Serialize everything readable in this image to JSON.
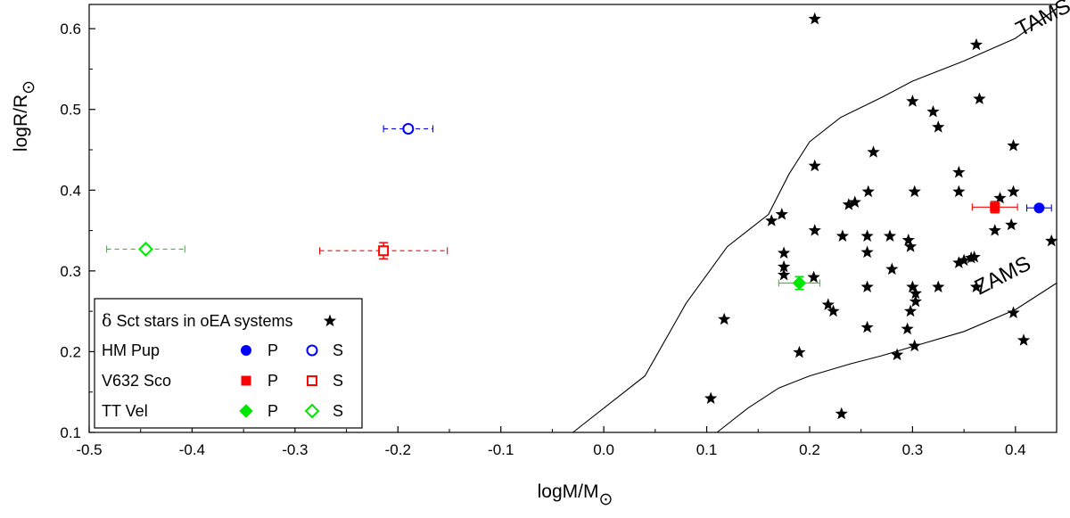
{
  "chart_data": {
    "type": "scatter",
    "xlabel": "logM/M",
    "ylabel": "logR/R",
    "xlim": [
      -0.5,
      0.44
    ],
    "ylim": [
      0.1,
      0.63
    ],
    "xticks": [
      "-0.5",
      "-0.4",
      "-0.3",
      "-0.2",
      "-0.1",
      "0.0",
      "0.1",
      "0.2",
      "0.3",
      "0.4"
    ],
    "yticks": [
      "0.1",
      "0.2",
      "0.3",
      "0.4",
      "0.5",
      "0.6"
    ],
    "solar_symbol": "⊙",
    "colors": {
      "hm_pup": "#0000ff",
      "v632_sco": "#ff0000",
      "tt_vel": "#00e600",
      "stars": "#000000",
      "lines": "#000000"
    },
    "curves": [
      {
        "name": "TAMS",
        "label": "TAMS",
        "label_x": 0.405,
        "label_y": 0.59,
        "points": [
          [
            -0.03,
            0.1
          ],
          [
            0.04,
            0.17
          ],
          [
            0.08,
            0.26
          ],
          [
            0.12,
            0.33
          ],
          [
            0.16,
            0.37
          ],
          [
            0.18,
            0.42
          ],
          [
            0.2,
            0.46
          ],
          [
            0.23,
            0.49
          ],
          [
            0.27,
            0.515
          ],
          [
            0.3,
            0.535
          ],
          [
            0.35,
            0.56
          ],
          [
            0.4,
            0.588
          ],
          [
            0.44,
            0.625
          ]
        ]
      },
      {
        "name": "ZAMS",
        "label": "ZAMS",
        "label_x": 0.365,
        "label_y": 0.27,
        "points": [
          [
            0.11,
            0.1
          ],
          [
            0.14,
            0.13
          ],
          [
            0.17,
            0.155
          ],
          [
            0.2,
            0.17
          ],
          [
            0.24,
            0.185
          ],
          [
            0.27,
            0.195
          ],
          [
            0.31,
            0.21
          ],
          [
            0.35,
            0.225
          ],
          [
            0.4,
            0.252
          ],
          [
            0.44,
            0.285
          ]
        ]
      }
    ],
    "series": [
      {
        "name": "δ Sct stars in oEA systems",
        "marker": "star",
        "points": [
          [
            0.205,
            0.612
          ],
          [
            0.362,
            0.58
          ],
          [
            0.3,
            0.51
          ],
          [
            0.365,
            0.513
          ],
          [
            0.32,
            0.497
          ],
          [
            0.325,
            0.478
          ],
          [
            0.205,
            0.43
          ],
          [
            0.262,
            0.447
          ],
          [
            0.398,
            0.455
          ],
          [
            0.345,
            0.422
          ],
          [
            0.257,
            0.398
          ],
          [
            0.302,
            0.398
          ],
          [
            0.345,
            0.398
          ],
          [
            0.398,
            0.398
          ],
          [
            0.238,
            0.382
          ],
          [
            0.244,
            0.385
          ],
          [
            0.385,
            0.39
          ],
          [
            0.173,
            0.37
          ],
          [
            0.163,
            0.362
          ],
          [
            0.205,
            0.35
          ],
          [
            0.232,
            0.343
          ],
          [
            0.256,
            0.343
          ],
          [
            0.278,
            0.343
          ],
          [
            0.296,
            0.338
          ],
          [
            0.38,
            0.35
          ],
          [
            0.396,
            0.357
          ],
          [
            0.435,
            0.337
          ],
          [
            0.256,
            0.323
          ],
          [
            0.298,
            0.33
          ],
          [
            0.175,
            0.322
          ],
          [
            0.175,
            0.305
          ],
          [
            0.28,
            0.302
          ],
          [
            0.345,
            0.31
          ],
          [
            0.35,
            0.313
          ],
          [
            0.357,
            0.316
          ],
          [
            0.36,
            0.317
          ],
          [
            0.175,
            0.295
          ],
          [
            0.204,
            0.292
          ],
          [
            0.256,
            0.28
          ],
          [
            0.3,
            0.28
          ],
          [
            0.303,
            0.272
          ],
          [
            0.325,
            0.28
          ],
          [
            0.362,
            0.28
          ],
          [
            0.303,
            0.262
          ],
          [
            0.298,
            0.25
          ],
          [
            0.218,
            0.258
          ],
          [
            0.223,
            0.25
          ],
          [
            0.117,
            0.24
          ],
          [
            0.256,
            0.23
          ],
          [
            0.295,
            0.228
          ],
          [
            0.398,
            0.248
          ],
          [
            0.408,
            0.214
          ],
          [
            0.302,
            0.207
          ],
          [
            0.19,
            0.199
          ],
          [
            0.285,
            0.196
          ],
          [
            0.104,
            0.142
          ],
          [
            0.231,
            0.123
          ]
        ]
      },
      {
        "name": "HM Pup",
        "group": "HM Pup",
        "component": "P",
        "marker": "circle",
        "filled": true,
        "points": [
          [
            0.423,
            0.378
          ]
        ],
        "xerr": [
          0.012
        ],
        "yerr": [
          0.0
        ]
      },
      {
        "name": "HM Pup",
        "group": "HM Pup",
        "component": "S",
        "marker": "circle",
        "filled": false,
        "points": [
          [
            -0.19,
            0.476
          ]
        ],
        "xerr": [
          0.024
        ],
        "yerr": [
          0.004
        ]
      },
      {
        "name": "V632 Sco",
        "group": "V632 Sco",
        "component": "P",
        "marker": "square",
        "filled": true,
        "points": [
          [
            0.38,
            0.379
          ]
        ],
        "xerr": [
          0.022
        ],
        "yerr": [
          0.007
        ]
      },
      {
        "name": "V632 Sco",
        "group": "V632 Sco",
        "component": "S",
        "marker": "square",
        "filled": false,
        "points": [
          [
            -0.214,
            0.325
          ]
        ],
        "xerr": [
          0.062
        ],
        "yerr": [
          0.01
        ]
      },
      {
        "name": "TT Vel",
        "group": "TT Vel",
        "component": "P",
        "marker": "diamond",
        "filled": true,
        "points": [
          [
            0.19,
            0.285
          ]
        ],
        "xerr": [
          0.02
        ],
        "yerr": [
          0.008
        ]
      },
      {
        "name": "TT Vel",
        "group": "TT Vel",
        "component": "S",
        "marker": "diamond",
        "filled": false,
        "points": [
          [
            -0.445,
            0.327
          ]
        ],
        "xerr": [
          0.038
        ],
        "yerr": [
          0.003
        ]
      }
    ],
    "legend": {
      "placement": "bottom-left",
      "rows": [
        {
          "symbol": "δ",
          "label": " Sct stars in oEA systems",
          "key": "stars"
        },
        {
          "label": "HM Pup",
          "p": "P",
          "s": "S",
          "key": "hm_pup",
          "marker": "circle"
        },
        {
          "label": "V632 Sco",
          "p": "P",
          "s": "S",
          "key": "v632_sco",
          "marker": "square"
        },
        {
          "label": "TT Vel",
          "p": "P",
          "s": "S",
          "key": "tt_vel",
          "marker": "diamond"
        }
      ]
    }
  }
}
